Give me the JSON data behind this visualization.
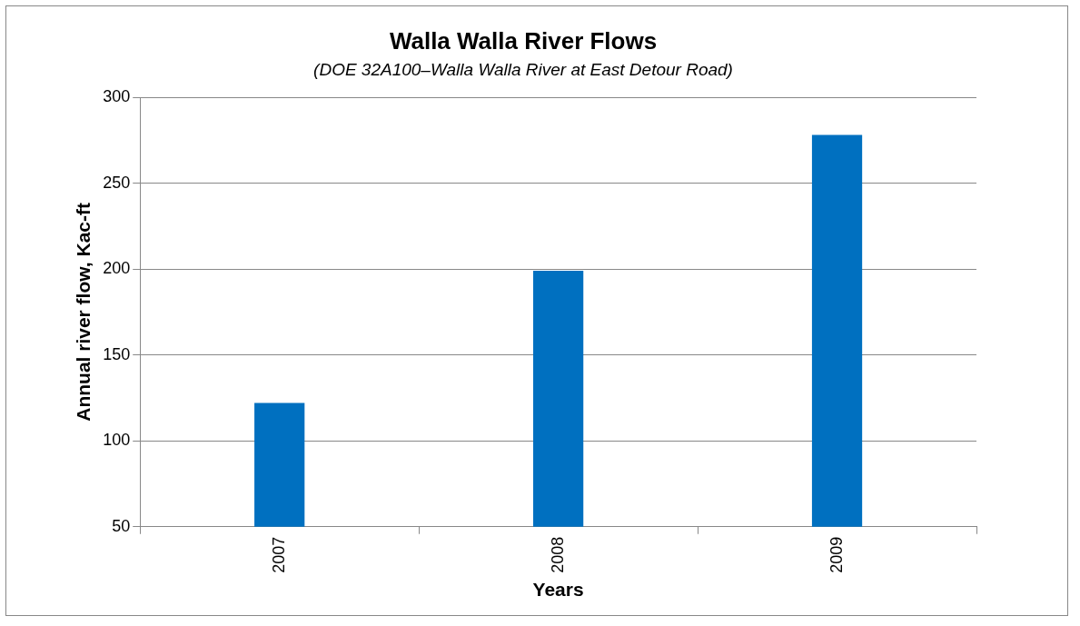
{
  "chart_data": {
    "type": "bar",
    "title": "Walla Walla River Flows",
    "subtitle": "(DOE 32A100–Walla Walla River at East Detour Road)",
    "xlabel": "Years",
    "ylabel": "Annual river flow, Kac-ft",
    "categories": [
      "2007",
      "2008",
      "2009"
    ],
    "values": [
      122,
      199,
      278
    ],
    "color": "#0070c0",
    "ylim": [
      50,
      300
    ],
    "yticks": [
      50,
      100,
      150,
      200,
      250,
      300
    ],
    "grid": "y"
  }
}
